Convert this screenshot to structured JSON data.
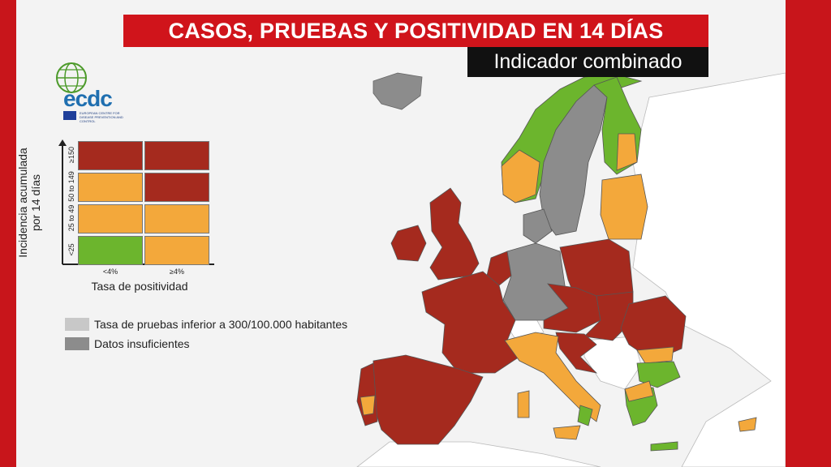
{
  "title": "CASOS, PRUEBAS Y POSITIVIDAD EN 14 DÍAS",
  "subtitle": "Indicador combinado",
  "logo": {
    "text": "ecdc",
    "subtext": "EUROPEAN CENTRE FOR DISEASE PREVENTION AND CONTROL"
  },
  "colors": {
    "red": "#a52a1e",
    "orange": "#f3a83b",
    "green": "#6cb52d",
    "light_grey": "#c8c8c8",
    "dark_grey": "#8c8c8c",
    "non_eu": "#ffffff",
    "sea": "#f3f3f3",
    "frame": "#c8151b"
  },
  "matrix": {
    "y_label_line1": "Incidencia acumulada",
    "y_label_line2": "por 14 días",
    "x_label": "Tasa de positividad",
    "rows": [
      "≥150",
      "50 to 149",
      "25 to 49",
      "<25"
    ],
    "cols": [
      "<4%",
      "≥4%"
    ],
    "cells": [
      [
        "red",
        "red"
      ],
      [
        "orange",
        "red"
      ],
      [
        "orange",
        "orange"
      ],
      [
        "green",
        "orange"
      ]
    ]
  },
  "legend": [
    {
      "label": "Tasa de pruebas inferior a 300/100.000 habitantes",
      "color": "light_grey"
    },
    {
      "label": "Datos insuficientes",
      "color": "dark_grey"
    }
  ],
  "map_regions": [
    {
      "name": "iceland",
      "status": "dark_grey"
    },
    {
      "name": "norway",
      "status": "green"
    },
    {
      "name": "sweden",
      "status": "dark_grey"
    },
    {
      "name": "finland",
      "status": "green"
    },
    {
      "name": "estonia-latvia-lithuania",
      "status": "orange"
    },
    {
      "name": "ireland",
      "status": "red"
    },
    {
      "name": "uk",
      "status": "red"
    },
    {
      "name": "denmark",
      "status": "dark_grey"
    },
    {
      "name": "germany",
      "status": "dark_grey"
    },
    {
      "name": "poland",
      "status": "red"
    },
    {
      "name": "france",
      "status": "red"
    },
    {
      "name": "benelux",
      "status": "red"
    },
    {
      "name": "czechia-austria",
      "status": "red"
    },
    {
      "name": "hungary-slovakia",
      "status": "red"
    },
    {
      "name": "romania",
      "status": "red"
    },
    {
      "name": "bulgaria",
      "status": "green"
    },
    {
      "name": "italy",
      "status": "orange"
    },
    {
      "name": "spain",
      "status": "red"
    },
    {
      "name": "portugal",
      "status": "red"
    },
    {
      "name": "greece",
      "status": "green"
    },
    {
      "name": "croatia",
      "status": "red"
    },
    {
      "name": "cyprus",
      "status": "orange"
    }
  ]
}
